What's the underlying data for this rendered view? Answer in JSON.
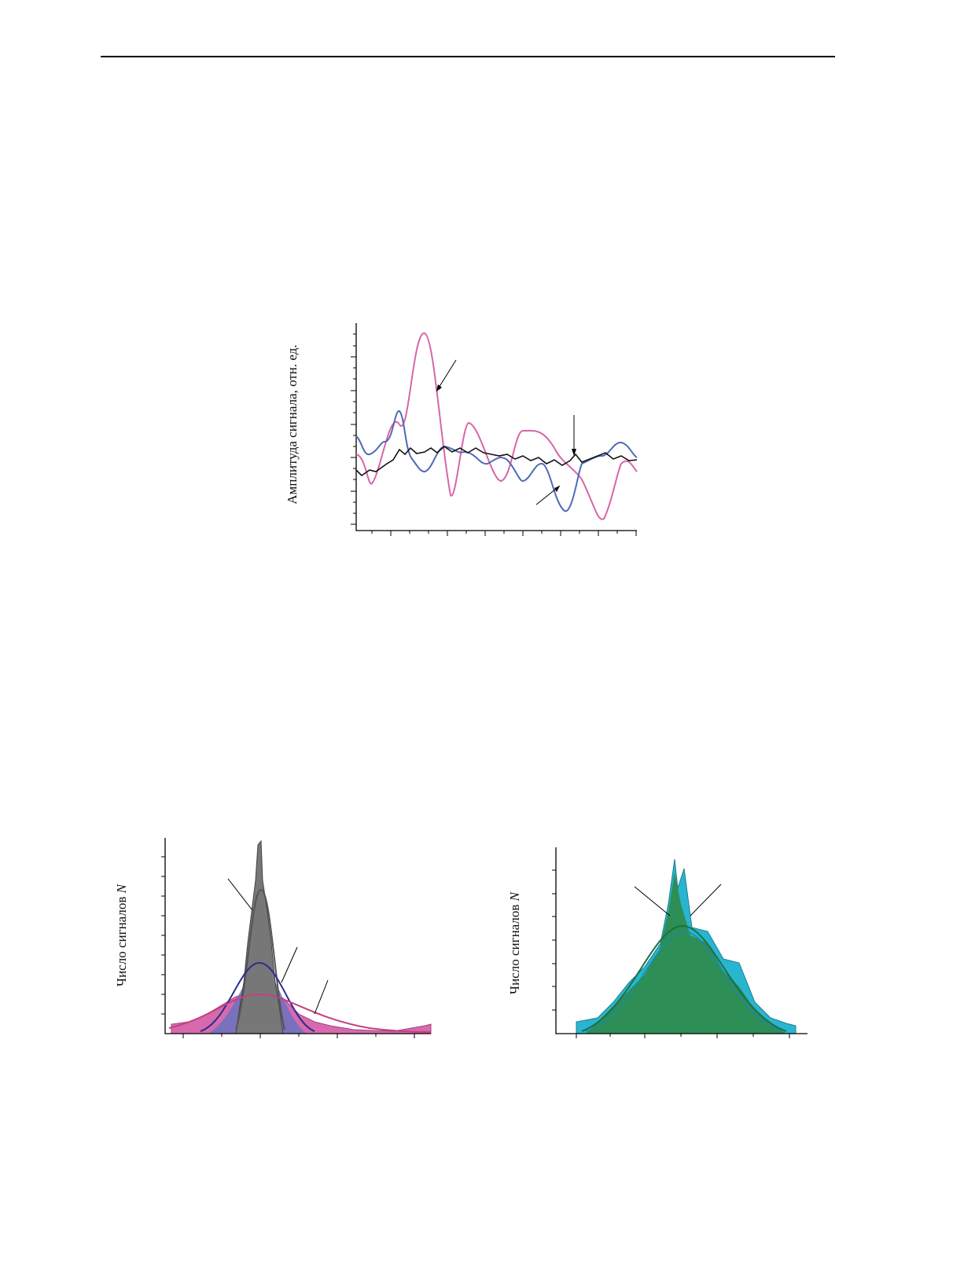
{
  "figures": [
    {
      "y_label": "Амплитуда сигнала, отн. ед."
    },
    {
      "y_label_prefix": "Число сигналов",
      "y_label_var": "N"
    },
    {
      "y_label_prefix": "Число сигналов",
      "y_label_var": "N"
    }
  ]
}
